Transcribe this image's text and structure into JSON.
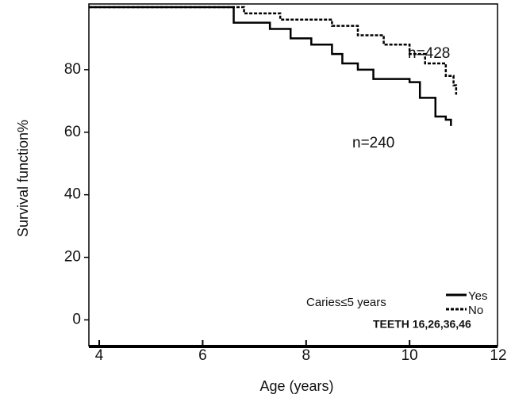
{
  "chart_data": {
    "type": "step",
    "x_label": "Age (years)",
    "y_label": "Survival function%",
    "xlim": [
      3.8,
      11.7
    ],
    "ylim": [
      -8.5,
      101
    ],
    "xticks": [
      4,
      6,
      8,
      10,
      12
    ],
    "yticks": [
      0,
      20,
      40,
      60,
      80
    ],
    "annotations": [
      "n=428",
      "n=240"
    ],
    "legend_title": "Caries≤5 years",
    "note": "TEETH 16,26,36,46",
    "series": [
      {
        "name": "Yes",
        "color": "#000000",
        "dash": "solid",
        "x": [
          3.8,
          6.6,
          7.3,
          7.7,
          8.1,
          8.5,
          8.7,
          9.0,
          9.3,
          10.0,
          10.2,
          10.5,
          10.7,
          10.8
        ],
        "values": [
          100,
          95,
          93,
          90,
          88,
          85,
          82,
          80,
          77,
          76,
          71,
          65,
          64,
          62
        ]
      },
      {
        "name": "No",
        "color": "#000000",
        "dash": "dotted",
        "x": [
          3.8,
          6.8,
          7.5,
          8.5,
          9.0,
          9.5,
          10.0,
          10.3,
          10.7,
          10.85,
          10.9
        ],
        "values": [
          100,
          98,
          96,
          94,
          91,
          88,
          85,
          82,
          78,
          75,
          72
        ]
      }
    ]
  }
}
